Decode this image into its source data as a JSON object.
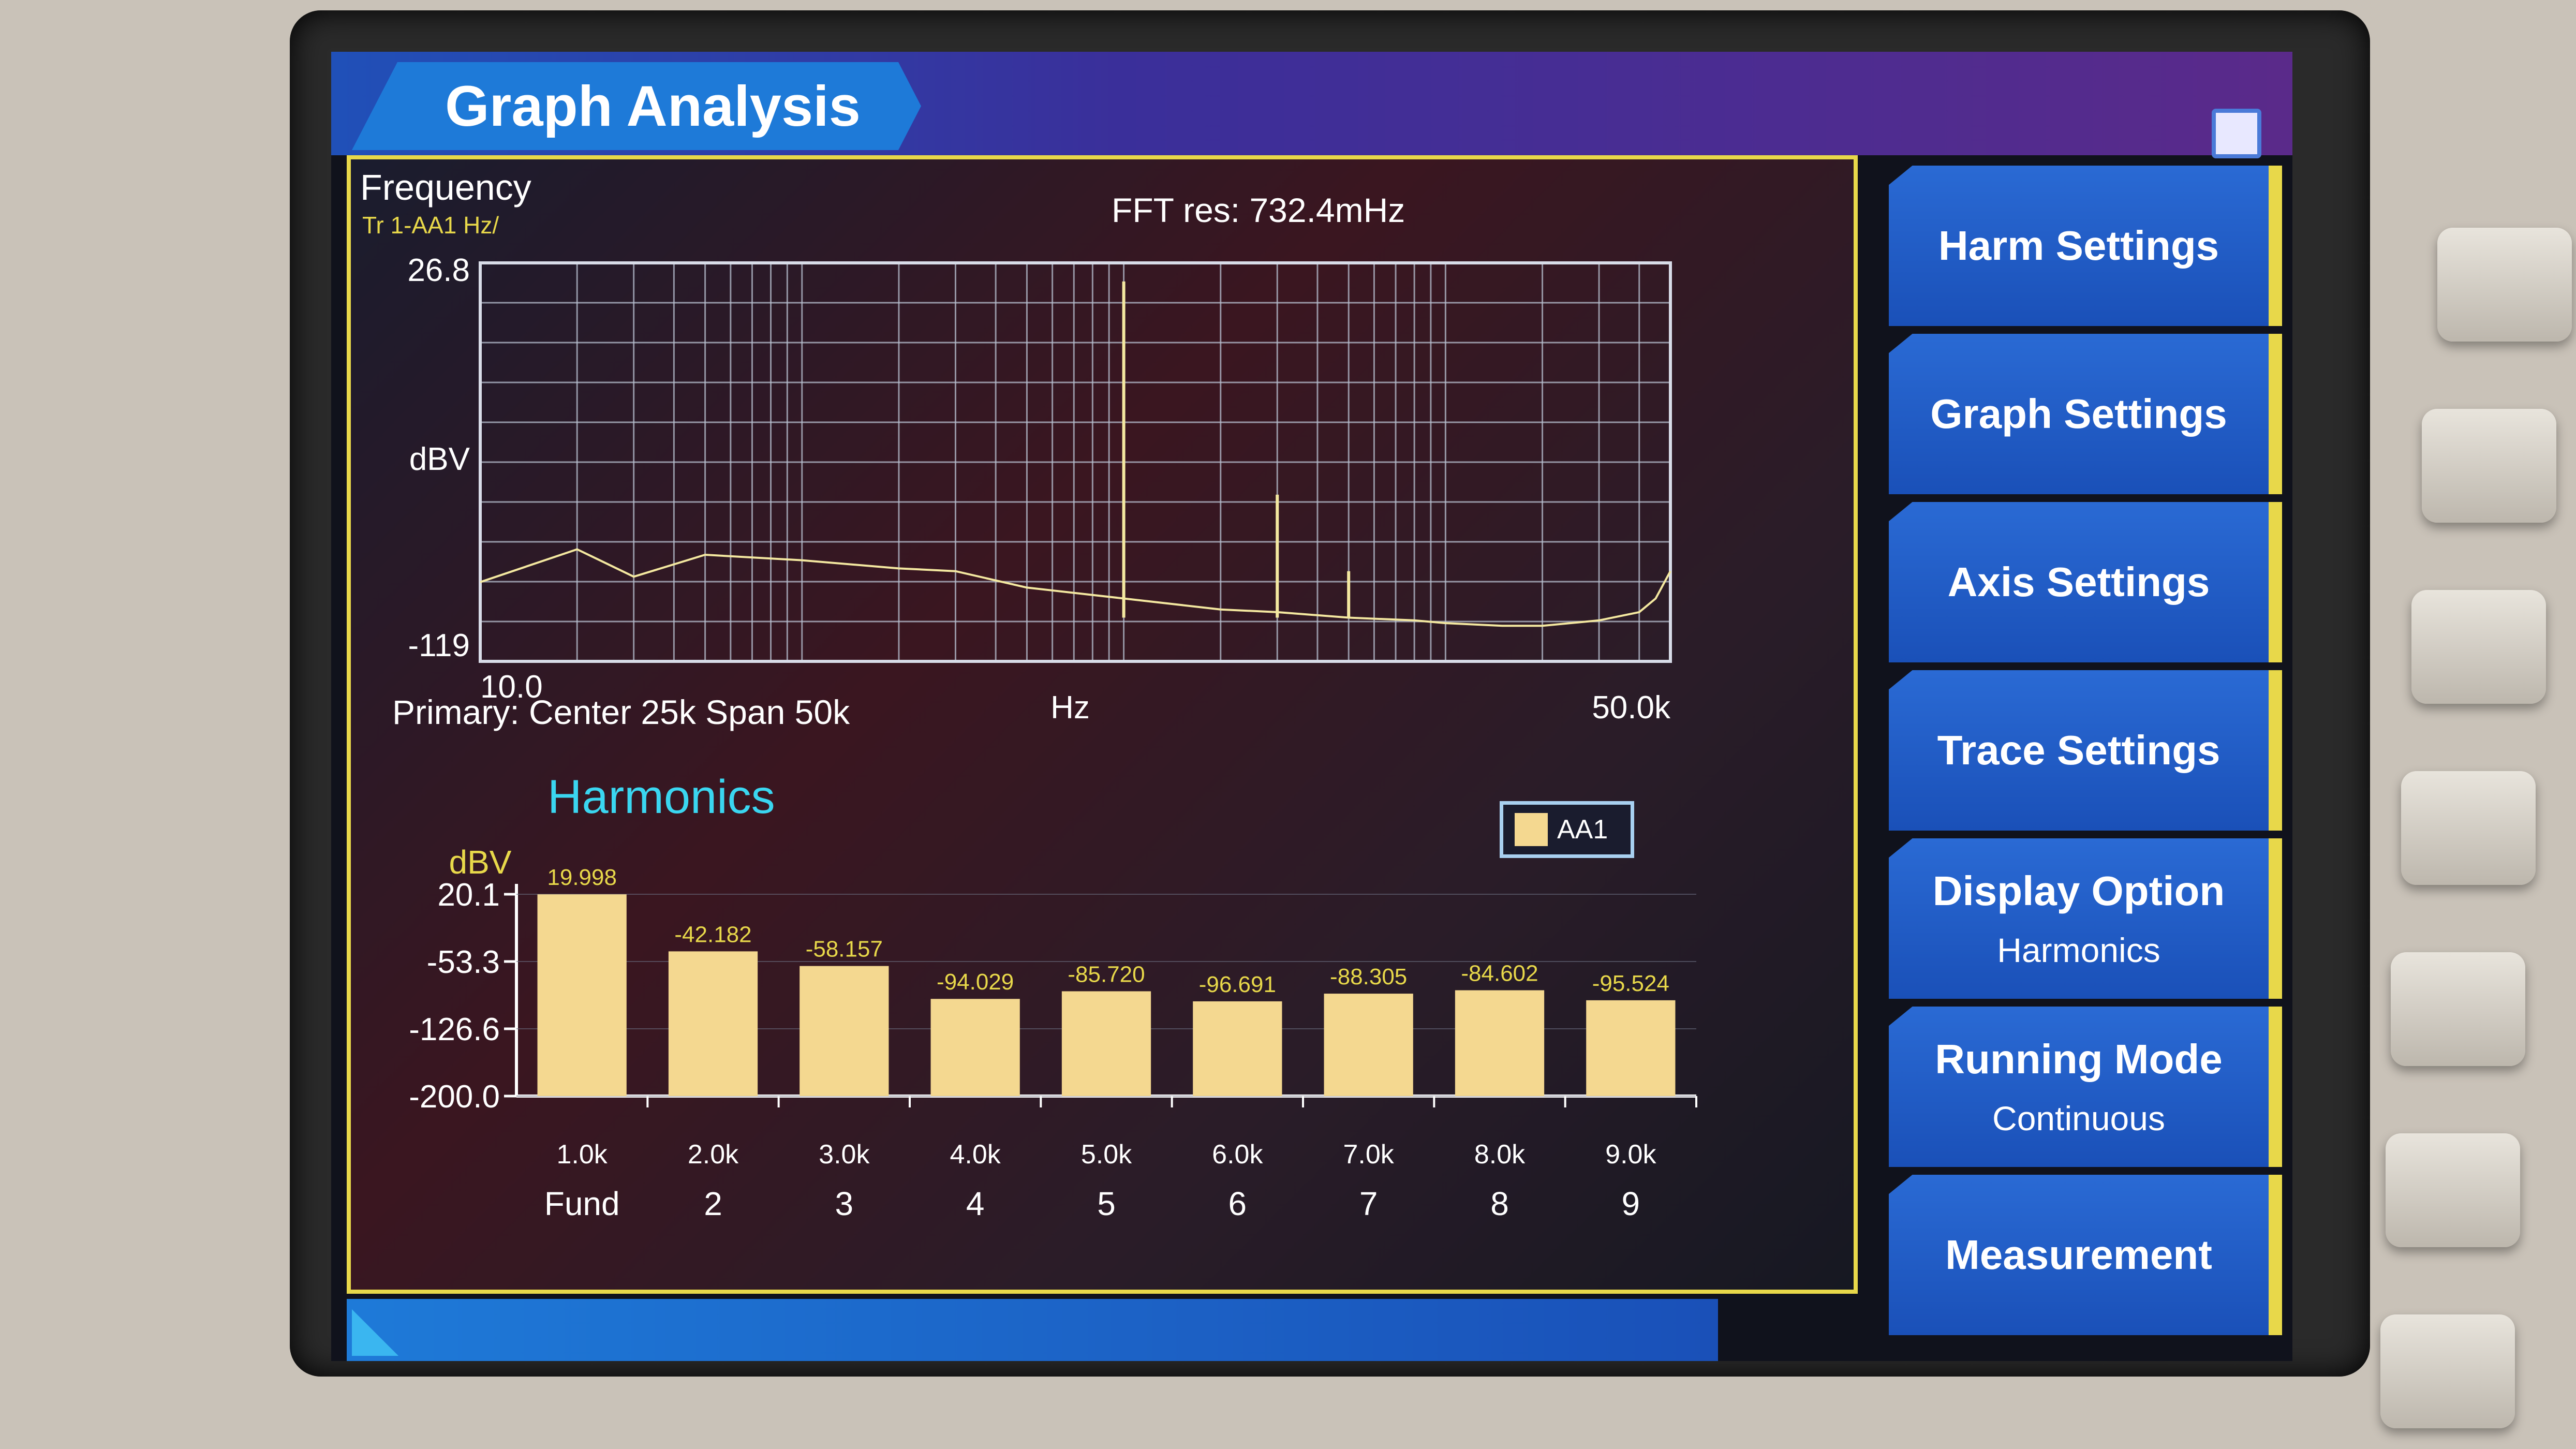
{
  "header": {
    "title": "Graph Analysis"
  },
  "spectrum": {
    "panel_label": "Frequency",
    "trace_label": "Tr 1-AA1 Hz/",
    "fft_res": "FFT res: 732.4mHz",
    "primary": "Primary: Center 25k Span 50k",
    "y_top": "26.8",
    "y_unit": "dBV",
    "y_bottom": "-119",
    "x_left": "10.0",
    "x_unit": "Hz",
    "x_right": "50.0k"
  },
  "harmonics": {
    "title": "Harmonics",
    "legend": "AA1",
    "y_unit": "dBV",
    "y_ticks": [
      "20.1",
      "-53.3",
      "-126.6",
      "-200.0"
    ]
  },
  "chart_data": [
    {
      "type": "line",
      "title": "Frequency",
      "xlabel": "Hz",
      "ylabel": "dBV",
      "xlim": [
        10,
        50000
      ],
      "ylim": [
        -119,
        26.8
      ],
      "x_scale": "log",
      "grid": true,
      "series": [
        {
          "name": "Tr 1-AA1",
          "x": [
            10,
            20,
            30,
            50,
            100,
            200,
            300,
            500,
            1000,
            2000,
            3000,
            5000,
            8000,
            10000,
            15000,
            20000,
            30000,
            40000,
            45000,
            50000
          ],
          "y": [
            -90,
            -78,
            -88,
            -80,
            -82,
            -85,
            -86,
            -92,
            -96,
            -100,
            -101,
            -103,
            -104,
            -105,
            -106,
            -106,
            -104,
            -101,
            -96,
            -86
          ]
        }
      ],
      "peaks": [
        {
          "x": 1000,
          "y": 20
        },
        {
          "x": 3000,
          "y": -58
        },
        {
          "x": 5000,
          "y": -86
        }
      ]
    },
    {
      "type": "bar",
      "title": "Harmonics",
      "ylabel": "dBV",
      "ylim": [
        -200,
        20.1
      ],
      "categories": [
        "1.0k",
        "2.0k",
        "3.0k",
        "4.0k",
        "5.0k",
        "6.0k",
        "7.0k",
        "8.0k",
        "9.0k"
      ],
      "orders": [
        "Fund",
        "2",
        "3",
        "4",
        "5",
        "6",
        "7",
        "8",
        "9"
      ],
      "series": [
        {
          "name": "AA1",
          "values": [
            19.998,
            -42.182,
            -58.157,
            -94.029,
            -85.72,
            -96.691,
            -88.305,
            -84.602,
            -95.524
          ]
        }
      ],
      "value_labels": [
        "19.998",
        "-42.182",
        "-58.157",
        "-94.029",
        "-85.720",
        "-96.691",
        "-88.305",
        "-84.602",
        "-95.524"
      ]
    }
  ],
  "colors": {
    "trace": "#f4e8a0",
    "bar": "#f4d890",
    "value_label": "#e8d84a",
    "softkey": "#1e60cc",
    "accent": "#e8d84a"
  },
  "softkeys": [
    {
      "label": "Harm Settings",
      "sub": ""
    },
    {
      "label": "Graph Settings",
      "sub": ""
    },
    {
      "label": "Axis Settings",
      "sub": ""
    },
    {
      "label": "Trace Settings",
      "sub": ""
    },
    {
      "label": "Display Option",
      "sub": "Harmonics"
    },
    {
      "label": "Running Mode",
      "sub": "Continuous"
    },
    {
      "label": "Measurement",
      "sub": ""
    }
  ],
  "icons": {
    "status": "network-status-icon"
  }
}
